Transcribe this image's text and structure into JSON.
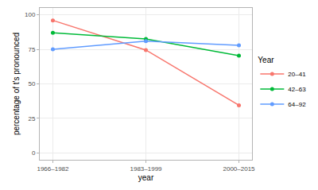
{
  "chart_data": {
    "type": "line",
    "x_label": "year",
    "y_label": "percentage of t's pronounced",
    "legend_title": "Year",
    "legend": "right",
    "grid": true,
    "marker": "circle",
    "categories": [
      "1966–1982",
      "1983–1999",
      "2000–2015"
    ],
    "series": [
      {
        "name": "20–41",
        "color": "#F8766D",
        "values": [
          96,
          74.5,
          34.5
        ]
      },
      {
        "name": "42–63",
        "color": "#00BA38",
        "values": [
          87,
          82.5,
          70.5
        ]
      },
      {
        "name": "64–92",
        "color": "#619CFF",
        "values": [
          75,
          81,
          78
        ]
      }
    ],
    "ylim": [
      -5,
      105
    ],
    "yticks": [
      0,
      25,
      50,
      75,
      100
    ]
  }
}
